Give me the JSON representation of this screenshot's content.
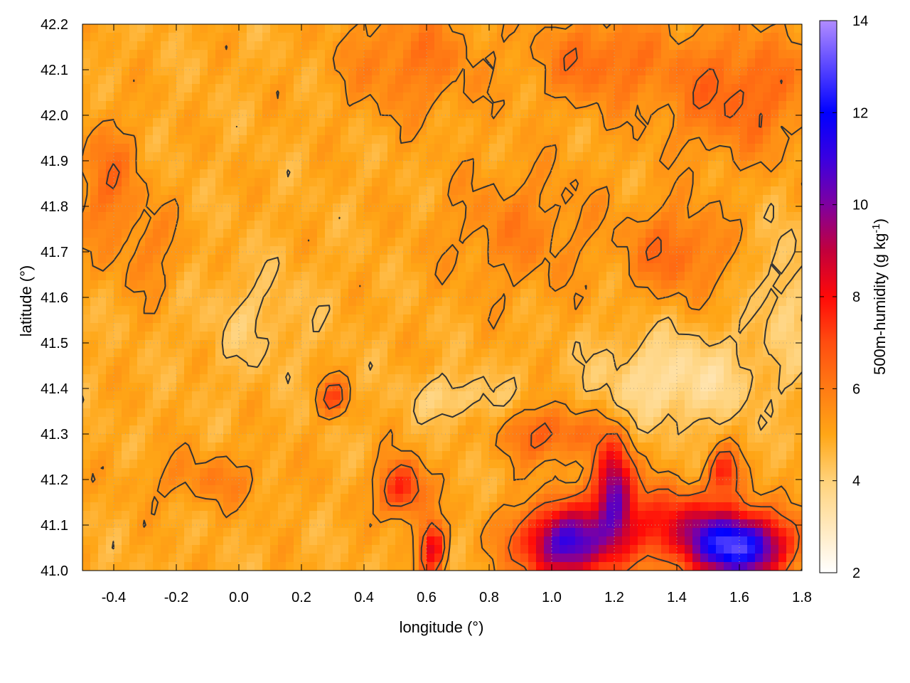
{
  "chart_data": {
    "type": "heatmap",
    "title": "",
    "xlabel": "longitude (°)",
    "ylabel": "latitude (°)",
    "xlim": [
      -0.5,
      1.8
    ],
    "ylim": [
      41.0,
      42.2
    ],
    "x_ticks": [
      -0.4,
      -0.2,
      0.0,
      0.2,
      0.4,
      0.6,
      0.8,
      1.0,
      1.2,
      1.4,
      1.6,
      1.8
    ],
    "x_tick_labels": [
      "-0.4",
      "-0.2",
      "0.0",
      "0.2",
      "0.4",
      "0.6",
      "0.8",
      "1.0",
      "1.2",
      "1.4",
      "1.6",
      "1.8"
    ],
    "y_ticks": [
      41.0,
      41.1,
      41.2,
      41.3,
      41.4,
      41.5,
      41.6,
      41.7,
      41.8,
      41.9,
      42.0,
      42.1,
      42.2
    ],
    "y_tick_labels": [
      "41.0",
      "41.1",
      "41.2",
      "41.3",
      "41.4",
      "41.5",
      "41.6",
      "41.7",
      "41.8",
      "41.9",
      "42.0",
      "42.1",
      "42.2"
    ],
    "grid": true,
    "contours": true,
    "colorbar": {
      "label_main": "500m-humidity (g kg",
      "label_sup": "-1",
      "label_close": ")",
      "range": [
        2,
        14
      ],
      "ticks": [
        2,
        4,
        6,
        8,
        10,
        12,
        14
      ],
      "tick_labels": [
        "2",
        "4",
        "6",
        "8",
        "10",
        "12",
        "14"
      ],
      "colors": [
        {
          "value": 2,
          "color": "#ffffff"
        },
        {
          "value": 4,
          "color": "#ffd27a"
        },
        {
          "value": 5,
          "color": "#ffa616"
        },
        {
          "value": 6,
          "color": "#ff7b14"
        },
        {
          "value": 7,
          "color": "#ff4d10"
        },
        {
          "value": 8,
          "color": "#ff0a08"
        },
        {
          "value": 9,
          "color": "#c2003c"
        },
        {
          "value": 10,
          "color": "#7f00a0"
        },
        {
          "value": 11,
          "color": "#3a00e0"
        },
        {
          "value": 12,
          "color": "#0000ff"
        },
        {
          "value": 14,
          "color": "#b18cff"
        }
      ]
    },
    "humidity_field": {
      "background": 4.9,
      "features": [
        {
          "lon": -0.42,
          "lat": 41.85,
          "sx": 0.1,
          "sy": 0.14,
          "amp": 1.3
        },
        {
          "lon": -0.28,
          "lat": 41.7,
          "sx": 0.1,
          "sy": 0.1,
          "amp": 0.8
        },
        {
          "lon": 0.55,
          "lat": 42.12,
          "sx": 0.22,
          "sy": 0.12,
          "amp": 1.2
        },
        {
          "lon": 1.15,
          "lat": 42.12,
          "sx": 0.2,
          "sy": 0.1,
          "amp": 1.4
        },
        {
          "lon": 1.6,
          "lat": 42.05,
          "sx": 0.25,
          "sy": 0.14,
          "amp": 1.6
        },
        {
          "lon": 0.9,
          "lat": 41.75,
          "sx": 0.25,
          "sy": 0.14,
          "amp": 0.9
        },
        {
          "lon": 1.4,
          "lat": 41.7,
          "sx": 0.15,
          "sy": 0.1,
          "amp": 1.5
        },
        {
          "lon": 1.0,
          "lat": 41.3,
          "sx": 0.15,
          "sy": 0.06,
          "amp": 1.8
        },
        {
          "lon": 0.52,
          "lat": 41.18,
          "sx": 0.07,
          "sy": 0.06,
          "amp": 3.0
        },
        {
          "lon": 0.62,
          "lat": 41.05,
          "sx": 0.04,
          "sy": 0.06,
          "amp": 3.5
        },
        {
          "lon": 0.3,
          "lat": 41.38,
          "sx": 0.05,
          "sy": 0.04,
          "amp": 2.0
        },
        {
          "lon": -0.1,
          "lat": 41.2,
          "sx": 0.2,
          "sy": 0.06,
          "amp": 0.9
        },
        {
          "lon": 1.05,
          "lat": 41.06,
          "sx": 0.15,
          "sy": 0.08,
          "amp": 6.0
        },
        {
          "lon": 1.2,
          "lat": 41.18,
          "sx": 0.06,
          "sy": 0.1,
          "amp": 5.0
        },
        {
          "lon": 1.6,
          "lat": 41.05,
          "sx": 0.15,
          "sy": 0.07,
          "amp": 7.5
        },
        {
          "lon": 1.4,
          "lat": 41.1,
          "sx": 0.2,
          "sy": 0.08,
          "amp": 3.0
        },
        {
          "lon": 1.55,
          "lat": 41.22,
          "sx": 0.05,
          "sy": 0.05,
          "amp": 2.5
        },
        {
          "lon": 1.4,
          "lat": 41.42,
          "sx": 0.25,
          "sy": 0.1,
          "amp": -1.5
        },
        {
          "lon": 0.7,
          "lat": 41.38,
          "sx": 0.15,
          "sy": 0.05,
          "amp": -1.0
        },
        {
          "lon": 0.05,
          "lat": 41.55,
          "sx": 0.18,
          "sy": 0.12,
          "amp": -0.6
        },
        {
          "lon": 1.75,
          "lat": 41.6,
          "sx": 0.08,
          "sy": 0.15,
          "amp": -1.0
        }
      ]
    }
  }
}
